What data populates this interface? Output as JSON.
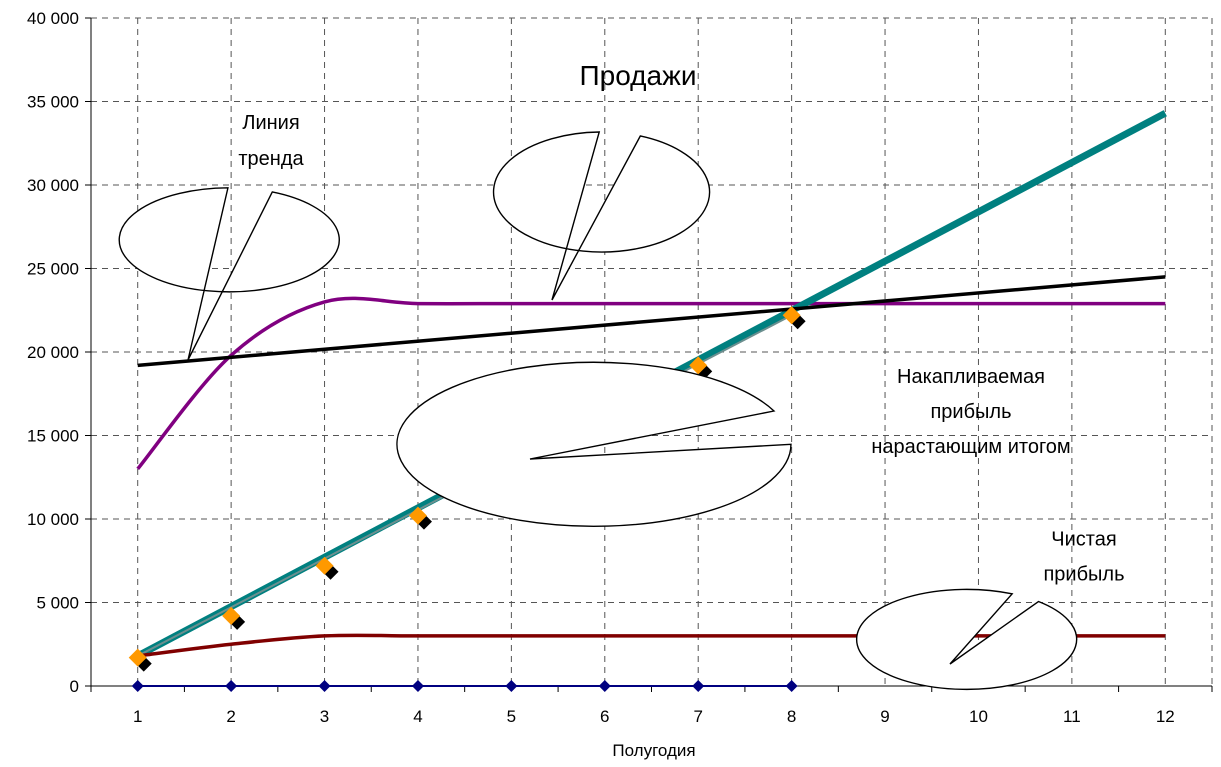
{
  "chart_data": {
    "type": "line",
    "title": "",
    "xlabel": "Полугодия",
    "ylabel": "",
    "xlim": [
      1,
      12
    ],
    "ylim": [
      0,
      40000
    ],
    "grid": true,
    "categories": [
      "1",
      "2",
      "3",
      "4",
      "5",
      "6",
      "7",
      "8",
      "9",
      "10",
      "11",
      "12"
    ],
    "y_ticks": [
      {
        "value": 0,
        "label": "0"
      },
      {
        "value": 5000,
        "label": "5 000"
      },
      {
        "value": 10000,
        "label": "10 000"
      },
      {
        "value": 15000,
        "label": "15 000"
      },
      {
        "value": 20000,
        "label": "20 000"
      },
      {
        "value": 25000,
        "label": "25 000"
      },
      {
        "value": 30000,
        "label": "30 000"
      },
      {
        "value": 35000,
        "label": "35 000"
      },
      {
        "value": 40000,
        "label": "40 000"
      }
    ],
    "series": [
      {
        "key": "sales",
        "color": "#800080",
        "smooth": true,
        "x": [
          1,
          2,
          3,
          4,
          5,
          6,
          7,
          8,
          9,
          10,
          11,
          12
        ],
        "values": [
          13000,
          19800,
          23000,
          22900,
          22900,
          22900,
          22900,
          22900,
          22900,
          22900,
          22900,
          22900
        ]
      },
      {
        "key": "trend",
        "color": "#000000",
        "x": [
          1,
          12
        ],
        "values": [
          19200,
          24500
        ]
      },
      {
        "key": "cumulative_shadow",
        "color": "#008080",
        "x": [
          1,
          12
        ],
        "values": [
          1800,
          34300
        ]
      },
      {
        "key": "net_profit",
        "color": "#800000",
        "smooth": true,
        "x": [
          1,
          2,
          3,
          4,
          5,
          6,
          7,
          8,
          9,
          10,
          11,
          12
        ],
        "values": [
          1800,
          2500,
          3000,
          3000,
          3000,
          3000,
          3000,
          3000,
          3000,
          3000,
          3000,
          3000
        ]
      },
      {
        "key": "zero_line",
        "color": "#000080",
        "marker": "diamond",
        "x": [
          1,
          2,
          3,
          4,
          5,
          6,
          7,
          8
        ],
        "values": [
          0,
          0,
          0,
          0,
          0,
          0,
          0,
          0
        ]
      },
      {
        "key": "cumulative_markers",
        "color": "#FF9900",
        "marker": "diamond",
        "x": [
          1,
          2,
          3,
          4,
          5,
          6,
          7,
          8
        ],
        "values": [
          1700,
          4200,
          7200,
          10200,
          13200,
          16200,
          19200,
          22200
        ]
      }
    ],
    "annotations": [
      {
        "key": "sales",
        "lines": [
          "Продажи"
        ]
      },
      {
        "key": "trend",
        "lines": [
          "Линия",
          "тренда"
        ]
      },
      {
        "key": "cumulative",
        "lines": [
          "Накапливаемая",
          "прибыль",
          "нарастающим итогом"
        ]
      },
      {
        "key": "net",
        "lines": [
          "Чистая",
          "прибыль"
        ]
      }
    ]
  }
}
